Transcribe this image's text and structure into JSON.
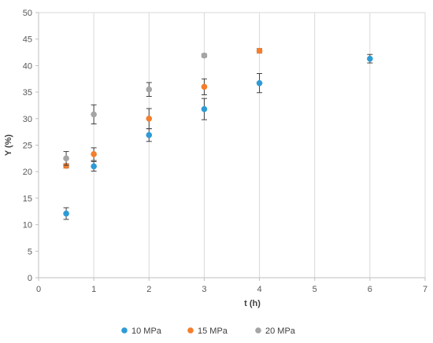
{
  "chart_data": {
    "type": "scatter",
    "title": "",
    "xlabel": "t (h)",
    "ylabel": "Y (%)",
    "xlim": [
      0,
      7
    ],
    "ylim": [
      0,
      50
    ],
    "x_ticks": [
      0,
      1,
      2,
      3,
      4,
      5,
      6,
      7
    ],
    "y_ticks": [
      0,
      5,
      10,
      15,
      20,
      25,
      30,
      35,
      40,
      45,
      50
    ],
    "grid": "vertical",
    "legend_position": "bottom",
    "series": [
      {
        "name": "10 MPa",
        "color": "#2E9BD6",
        "points": [
          {
            "x": 0.5,
            "y": 12.1,
            "err": 1.1
          },
          {
            "x": 1,
            "y": 21.0,
            "err": 0.9
          },
          {
            "x": 2,
            "y": 26.9,
            "err": 1.2
          },
          {
            "x": 3,
            "y": 31.8,
            "err": 2.0
          },
          {
            "x": 4,
            "y": 36.7,
            "err": 1.8
          },
          {
            "x": 6,
            "y": 41.3,
            "err": 0.8
          }
        ]
      },
      {
        "name": "15 MPa",
        "color": "#F47E2C",
        "points": [
          {
            "x": 0.5,
            "y": 21.1,
            "err": 0.4
          },
          {
            "x": 1,
            "y": 23.3,
            "err": 1.2
          },
          {
            "x": 2,
            "y": 30.0,
            "err": 1.9
          },
          {
            "x": 3,
            "y": 36.0,
            "err": 1.5
          },
          {
            "x": 4,
            "y": 42.8,
            "err": 0.4
          }
        ]
      },
      {
        "name": "20 MPa",
        "color": "#A5A5A5",
        "points": [
          {
            "x": 0.5,
            "y": 22.5,
            "err": 1.3
          },
          {
            "x": 1,
            "y": 30.8,
            "err": 1.8
          },
          {
            "x": 2,
            "y": 35.5,
            "err": 1.3
          },
          {
            "x": 3,
            "y": 41.9,
            "err": 0.3
          }
        ]
      }
    ]
  }
}
